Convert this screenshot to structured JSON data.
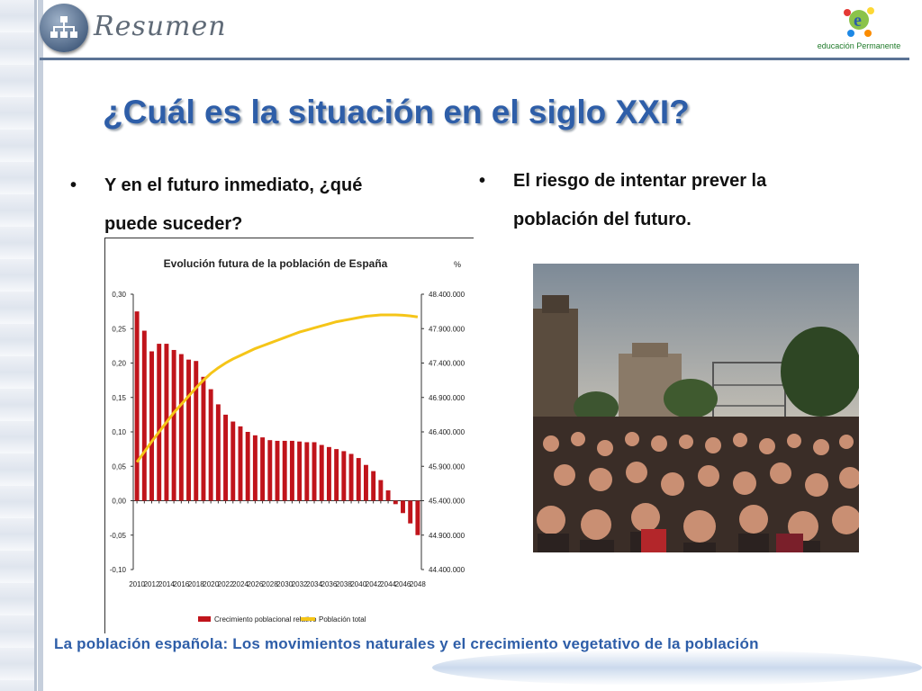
{
  "header": {
    "title": "Resumen"
  },
  "brand": {
    "text": "educación Permanente"
  },
  "slide": {
    "title": "¿Cuál es la situación en el siglo XXI?",
    "bullet_left": {
      "line1": "Y en el futuro inmediato, ¿qué",
      "line2": "puede suceder?"
    },
    "bullet_right": {
      "line1": "El riesgo de intentar prever la",
      "line2": "población del futuro."
    },
    "bullet_glyph": "•"
  },
  "chart_data": {
    "type": "bar",
    "title": "Evolución futura de la población de España",
    "unit_label": "%",
    "categories": [
      "2010",
      "2011",
      "2012",
      "2013",
      "2014",
      "2015",
      "2016",
      "2017",
      "2018",
      "2019",
      "2020",
      "2021",
      "2022",
      "2023",
      "2024",
      "2025",
      "2026",
      "2027",
      "2028",
      "2029",
      "2030",
      "2031",
      "2032",
      "2033",
      "2034",
      "2035",
      "2036",
      "2037",
      "2038",
      "2039",
      "2040",
      "2041",
      "2042",
      "2043",
      "2044",
      "2045",
      "2046",
      "2047",
      "2048"
    ],
    "x_tick_labels": [
      "2010",
      "2012",
      "2014",
      "2016",
      "2018",
      "2020",
      "2022",
      "2024",
      "2026",
      "2028",
      "2030",
      "2032",
      "2034",
      "2036",
      "2038",
      "2040",
      "2042",
      "2044",
      "2046",
      "2048"
    ],
    "y_left_ticks": [
      "0,30",
      "0,25",
      "0,20",
      "0,15",
      "0,10",
      "0,05",
      "0,00",
      "-0,05",
      "-0,10"
    ],
    "y_right_ticks": [
      "48.400.000",
      "47.900.000",
      "47.400.000",
      "46.900.000",
      "46.400.000",
      "45.900.000",
      "45.400.000",
      "44.900.000",
      "44.400.000"
    ],
    "ylim": [
      -0.1,
      0.3
    ],
    "y2lim": [
      44400000,
      48400000
    ],
    "series": [
      {
        "name": "Crecimiento poblacional relativo",
        "axis": "left",
        "color": "#c0141b",
        "values": [
          0.275,
          0.247,
          0.217,
          0.228,
          0.228,
          0.219,
          0.213,
          0.205,
          0.203,
          0.18,
          0.162,
          0.14,
          0.125,
          0.115,
          0.108,
          0.1,
          0.095,
          0.092,
          0.088,
          0.087,
          0.087,
          0.087,
          0.086,
          0.085,
          0.085,
          0.081,
          0.078,
          0.075,
          0.072,
          0.068,
          0.062,
          0.052,
          0.043,
          0.03,
          0.015,
          -0.005,
          -0.018,
          -0.033,
          -0.05
        ]
      },
      {
        "name": "Población total",
        "axis": "right",
        "color": "#f5c518",
        "values": [
          45960000,
          46110000,
          46260000,
          46400000,
          46540000,
          46680000,
          46800000,
          46920000,
          47040000,
          47150000,
          47250000,
          47330000,
          47400000,
          47460000,
          47510000,
          47560000,
          47610000,
          47650000,
          47690000,
          47730000,
          47770000,
          47810000,
          47850000,
          47880000,
          47910000,
          47940000,
          47970000,
          48000000,
          48020000,
          48040000,
          48060000,
          48080000,
          48090000,
          48100000,
          48100000,
          48100000,
          48095000,
          48085000,
          48070000
        ]
      }
    ]
  },
  "footer": {
    "text": "La población española: Los movimientos naturales y el crecimiento vegetativo de la población"
  }
}
